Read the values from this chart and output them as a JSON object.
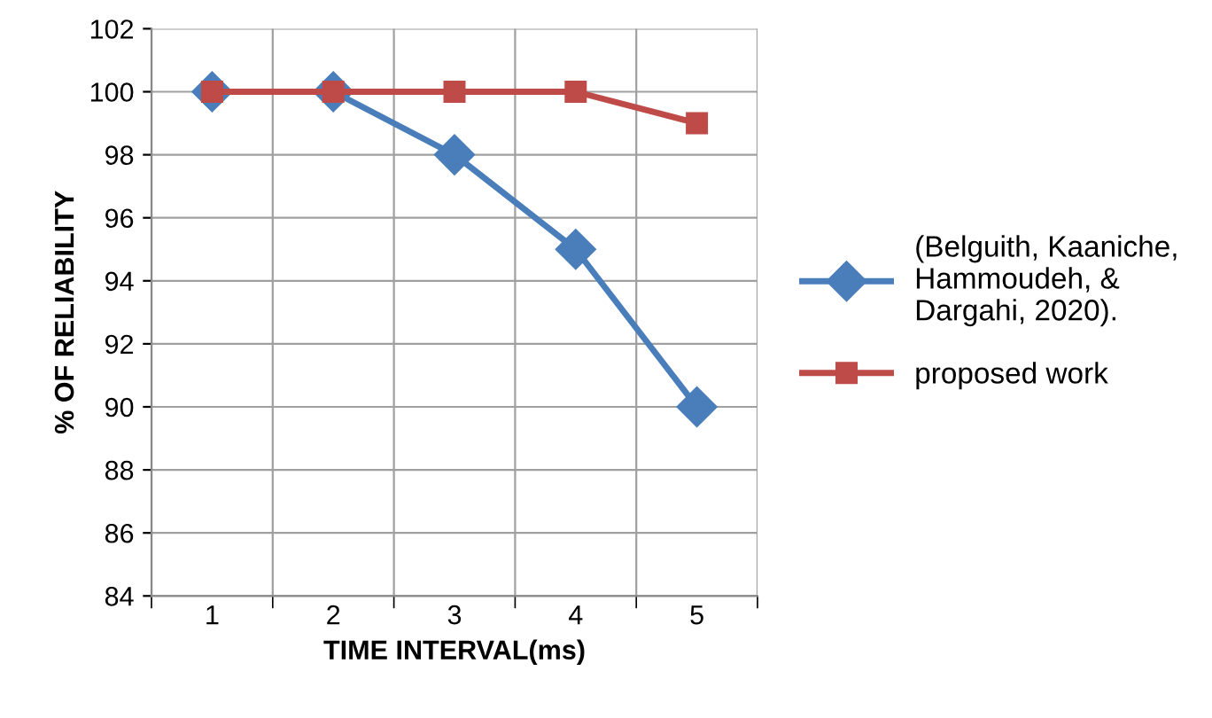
{
  "chart_data": {
    "type": "line",
    "xlabel": "TIME INTERVAL(ms)",
    "ylabel": "% OF RELIABILITY",
    "categories": [
      "1",
      "2",
      "3",
      "4",
      "5"
    ],
    "series": [
      {
        "name": "(Belguith, Kaaniche,\nHammoudeh, &\nDargahi, 2020).",
        "color": "#4a7ebb",
        "marker": "diamond",
        "values": [
          100,
          100,
          98,
          95,
          90
        ]
      },
      {
        "name": "proposed work",
        "color": "#be4b48",
        "marker": "square",
        "values": [
          100,
          100,
          100,
          100,
          99
        ]
      }
    ],
    "ylim": [
      84,
      102
    ],
    "yticks": [
      84,
      86,
      88,
      90,
      92,
      94,
      96,
      98,
      100,
      102
    ],
    "grid": true,
    "legend": "right",
    "line_style": "solid"
  }
}
